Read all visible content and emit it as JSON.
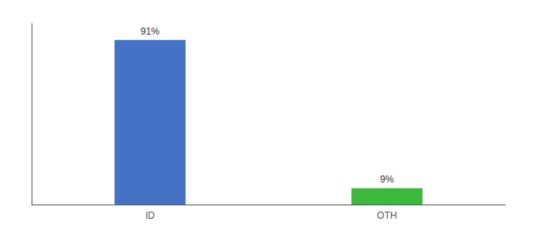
{
  "chart_data": {
    "type": "bar",
    "categories": [
      "ID",
      "OTH"
    ],
    "values": [
      91,
      9
    ],
    "value_labels": [
      "91%",
      "9%"
    ],
    "colors": [
      "#4472C4",
      "#3CB83C"
    ],
    "ylim": [
      0,
      100
    ],
    "data_labels": true,
    "grid": false,
    "tick_labels": "x"
  }
}
